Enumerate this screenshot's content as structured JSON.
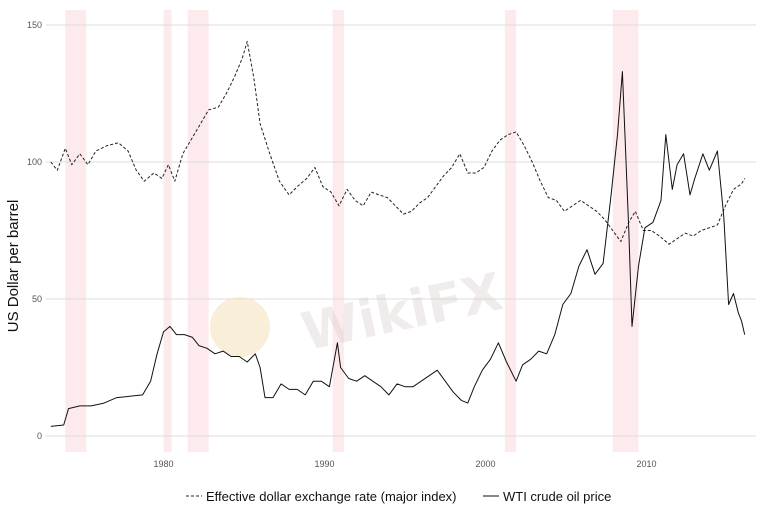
{
  "chart_data": {
    "type": "line",
    "title": "",
    "xlabel": "",
    "ylabel": "US Dollar per barrel",
    "xlim": [
      1972.7,
      2016.8
    ],
    "ylim": [
      0,
      150
    ],
    "x_ticks": [
      1980,
      1990,
      2000,
      2010
    ],
    "y_ticks": [
      0,
      50,
      100,
      150
    ],
    "grid": "horizontal",
    "legend_position": "bottom",
    "watermark": "WikiFX",
    "shaded_periods": [
      [
        1973.9,
        1975.2
      ],
      [
        1980.0,
        1980.5
      ],
      [
        1981.5,
        1982.8
      ],
      [
        1990.5,
        1991.2
      ],
      [
        2001.2,
        2001.9
      ],
      [
        2007.9,
        2009.5
      ]
    ],
    "series": [
      {
        "name": "Effective dollar exchange rate (major index)",
        "style": "dashed",
        "color": "#222222",
        "points": [
          [
            1973.0,
            100
          ],
          [
            1973.4,
            97
          ],
          [
            1973.9,
            105
          ],
          [
            1974.3,
            99
          ],
          [
            1974.8,
            103
          ],
          [
            1975.3,
            99
          ],
          [
            1975.8,
            104
          ],
          [
            1976.5,
            106
          ],
          [
            1977.2,
            107
          ],
          [
            1977.8,
            104
          ],
          [
            1978.3,
            97
          ],
          [
            1978.8,
            93
          ],
          [
            1979.4,
            96
          ],
          [
            1979.9,
            94
          ],
          [
            1980.3,
            99
          ],
          [
            1980.7,
            93
          ],
          [
            1981.2,
            103
          ],
          [
            1981.7,
            108
          ],
          [
            1982.3,
            114
          ],
          [
            1982.8,
            119
          ],
          [
            1983.4,
            120
          ],
          [
            1983.9,
            125
          ],
          [
            1984.4,
            131
          ],
          [
            1984.9,
            138
          ],
          [
            1985.2,
            144
          ],
          [
            1985.6,
            131
          ],
          [
            1986.0,
            114
          ],
          [
            1986.6,
            103
          ],
          [
            1987.2,
            93
          ],
          [
            1987.8,
            88
          ],
          [
            1988.3,
            91
          ],
          [
            1988.9,
            94
          ],
          [
            1989.4,
            98
          ],
          [
            1989.9,
            91
          ],
          [
            1990.4,
            89
          ],
          [
            1990.9,
            84
          ],
          [
            1991.4,
            90
          ],
          [
            1991.9,
            86
          ],
          [
            1992.4,
            84
          ],
          [
            1992.9,
            89
          ],
          [
            1993.4,
            88
          ],
          [
            1993.9,
            87
          ],
          [
            1994.4,
            84
          ],
          [
            1994.9,
            81
          ],
          [
            1995.4,
            82
          ],
          [
            1995.9,
            85
          ],
          [
            1996.4,
            87
          ],
          [
            1996.9,
            91
          ],
          [
            1997.4,
            95
          ],
          [
            1997.9,
            98
          ],
          [
            1998.4,
            103
          ],
          [
            1998.9,
            96
          ],
          [
            1999.4,
            96
          ],
          [
            1999.9,
            98
          ],
          [
            2000.4,
            104
          ],
          [
            2000.9,
            108
          ],
          [
            2001.4,
            110
          ],
          [
            2001.9,
            111
          ],
          [
            2002.4,
            106
          ],
          [
            2002.9,
            100
          ],
          [
            2003.4,
            93
          ],
          [
            2003.9,
            87
          ],
          [
            2004.4,
            86
          ],
          [
            2004.9,
            82
          ],
          [
            2005.4,
            84
          ],
          [
            2005.9,
            86
          ],
          [
            2006.4,
            84
          ],
          [
            2006.9,
            82
          ],
          [
            2007.4,
            79
          ],
          [
            2007.9,
            75
          ],
          [
            2008.4,
            71
          ],
          [
            2008.9,
            78
          ],
          [
            2009.3,
            82
          ],
          [
            2009.8,
            75
          ],
          [
            2010.3,
            75
          ],
          [
            2010.8,
            73
          ],
          [
            2011.4,
            70
          ],
          [
            2011.9,
            72
          ],
          [
            2012.4,
            74
          ],
          [
            2012.9,
            73
          ],
          [
            2013.4,
            75
          ],
          [
            2013.9,
            76
          ],
          [
            2014.4,
            77
          ],
          [
            2014.9,
            84
          ],
          [
            2015.4,
            90
          ],
          [
            2015.9,
            92
          ],
          [
            2016.1,
            94
          ]
        ]
      },
      {
        "name": "WTI crude oil price",
        "style": "solid",
        "color": "#111111",
        "points": [
          [
            1973.0,
            3.5
          ],
          [
            1973.8,
            4
          ],
          [
            1974.1,
            10
          ],
          [
            1974.8,
            11
          ],
          [
            1975.5,
            11
          ],
          [
            1976.3,
            12
          ],
          [
            1977.1,
            14
          ],
          [
            1977.9,
            14.5
          ],
          [
            1978.7,
            15
          ],
          [
            1979.2,
            20
          ],
          [
            1979.6,
            30
          ],
          [
            1980.0,
            38
          ],
          [
            1980.4,
            40
          ],
          [
            1980.8,
            37
          ],
          [
            1981.3,
            37
          ],
          [
            1981.8,
            36
          ],
          [
            1982.2,
            33
          ],
          [
            1982.7,
            32
          ],
          [
            1983.2,
            30
          ],
          [
            1983.7,
            31
          ],
          [
            1984.2,
            29
          ],
          [
            1984.7,
            29
          ],
          [
            1985.2,
            27
          ],
          [
            1985.7,
            30
          ],
          [
            1986.0,
            25
          ],
          [
            1986.3,
            14
          ],
          [
            1986.8,
            14
          ],
          [
            1987.3,
            19
          ],
          [
            1987.8,
            17
          ],
          [
            1988.3,
            17
          ],
          [
            1988.8,
            15
          ],
          [
            1989.3,
            20
          ],
          [
            1989.8,
            20
          ],
          [
            1990.3,
            18
          ],
          [
            1990.8,
            34
          ],
          [
            1991.0,
            25
          ],
          [
            1991.5,
            21
          ],
          [
            1992.0,
            20
          ],
          [
            1992.5,
            22
          ],
          [
            1993.0,
            20
          ],
          [
            1993.5,
            18
          ],
          [
            1994.0,
            15
          ],
          [
            1994.5,
            19
          ],
          [
            1995.0,
            18
          ],
          [
            1995.5,
            18
          ],
          [
            1996.0,
            20
          ],
          [
            1996.5,
            22
          ],
          [
            1997.0,
            24
          ],
          [
            1997.5,
            20
          ],
          [
            1998.0,
            16
          ],
          [
            1998.5,
            13
          ],
          [
            1998.9,
            12
          ],
          [
            1999.3,
            18
          ],
          [
            1999.8,
            24
          ],
          [
            2000.3,
            28
          ],
          [
            2000.8,
            34
          ],
          [
            2001.3,
            27
          ],
          [
            2001.9,
            20
          ],
          [
            2002.3,
            26
          ],
          [
            2002.8,
            28
          ],
          [
            2003.3,
            31
          ],
          [
            2003.8,
            30
          ],
          [
            2004.3,
            37
          ],
          [
            2004.8,
            48
          ],
          [
            2005.3,
            52
          ],
          [
            2005.8,
            62
          ],
          [
            2006.3,
            68
          ],
          [
            2006.8,
            59
          ],
          [
            2007.3,
            63
          ],
          [
            2007.8,
            88
          ],
          [
            2008.2,
            110
          ],
          [
            2008.5,
            133
          ],
          [
            2008.9,
            75
          ],
          [
            2009.1,
            40
          ],
          [
            2009.5,
            62
          ],
          [
            2009.9,
            76
          ],
          [
            2010.4,
            78
          ],
          [
            2010.9,
            86
          ],
          [
            2011.2,
            110
          ],
          [
            2011.6,
            90
          ],
          [
            2011.9,
            99
          ],
          [
            2012.3,
            103
          ],
          [
            2012.7,
            88
          ],
          [
            2013.0,
            94
          ],
          [
            2013.5,
            103
          ],
          [
            2013.9,
            97
          ],
          [
            2014.4,
            104
          ],
          [
            2014.8,
            80
          ],
          [
            2015.1,
            48
          ],
          [
            2015.4,
            52
          ],
          [
            2015.7,
            45
          ],
          [
            2015.9,
            42
          ],
          [
            2016.1,
            37
          ]
        ]
      }
    ]
  }
}
